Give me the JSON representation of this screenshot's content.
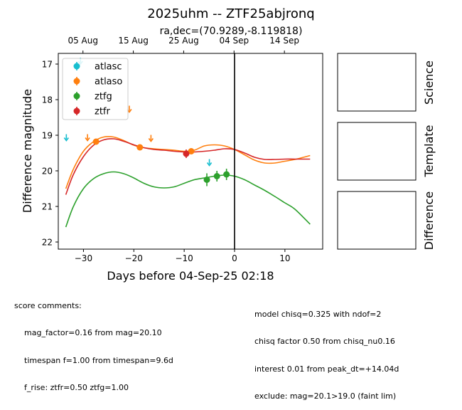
{
  "title": "2025uhm -- ZTF25abjronq",
  "subtitle": "ra,dec=(70.9289,-8.119818)",
  "colors": {
    "atlasc": "#17becf",
    "atlaso": "#ff7f0e",
    "ztfg": "#2ca02c",
    "ztfr": "#d62728"
  },
  "chart_data": {
    "type": "scatter",
    "xlabel": "Days before 04-Sep-25 02:18",
    "ylabel": "Difference magnitude",
    "xlim": [
      -35,
      17.5
    ],
    "ylim": [
      22.2,
      16.7
    ],
    "y_inverted": true,
    "x_ticks": [
      -30,
      -20,
      -10,
      0,
      10
    ],
    "x_tick_labels": [
      "−30",
      "−20",
      "−10",
      "0",
      "10"
    ],
    "y_ticks": [
      17,
      18,
      19,
      20,
      21,
      22
    ],
    "top_axis_ticks": [
      {
        "x": -30.1,
        "label": "05 Aug"
      },
      {
        "x": -20.1,
        "label": "15 Aug"
      },
      {
        "x": -10.1,
        "label": "25 Aug"
      },
      {
        "x": -0.1,
        "label": "04 Sep"
      },
      {
        "x": 9.9,
        "label": "14 Sep"
      }
    ],
    "vline_x": 0,
    "legend_position": "top-left",
    "series": [
      {
        "name": "atlasc",
        "color": "#17becf",
        "points": [],
        "upper_limits": [
          [
            -33.4,
            19.05
          ],
          [
            -30.6,
            16.9
          ],
          [
            -5.0,
            19.75
          ]
        ],
        "model": []
      },
      {
        "name": "atlaso",
        "color": "#ff7f0e",
        "points": [
          [
            -27.5,
            19.18,
            0.06
          ],
          [
            -18.8,
            19.34,
            0.06
          ],
          [
            -8.6,
            19.45,
            0.06
          ]
        ],
        "upper_limits": [
          [
            -29.2,
            19.05
          ],
          [
            -20.9,
            18.25
          ],
          [
            -16.6,
            19.07
          ]
        ],
        "model": [
          [
            -33.5,
            20.5
          ],
          [
            -32,
            19.95
          ],
          [
            -30,
            19.45
          ],
          [
            -28,
            19.18
          ],
          [
            -26,
            19.05
          ],
          [
            -24,
            19.05
          ],
          [
            -22,
            19.15
          ],
          [
            -20,
            19.28
          ],
          [
            -18,
            19.35
          ],
          [
            -16,
            19.38
          ],
          [
            -14,
            19.4
          ],
          [
            -12,
            19.42
          ],
          [
            -10,
            19.45
          ],
          [
            -8,
            19.42
          ],
          [
            -6,
            19.3
          ],
          [
            -4,
            19.27
          ],
          [
            -2,
            19.3
          ],
          [
            0,
            19.4
          ],
          [
            2,
            19.55
          ],
          [
            4,
            19.7
          ],
          [
            6,
            19.78
          ],
          [
            8,
            19.78
          ],
          [
            10,
            19.73
          ],
          [
            12,
            19.68
          ],
          [
            15,
            19.57
          ]
        ]
      },
      {
        "name": "ztfg",
        "color": "#2ca02c",
        "points": [
          [
            -5.5,
            20.25,
            0.18
          ],
          [
            -3.5,
            20.15,
            0.15
          ],
          [
            -1.6,
            20.1,
            0.16
          ]
        ],
        "upper_limits": [],
        "model": [
          [
            -33.5,
            21.58
          ],
          [
            -32,
            21.0
          ],
          [
            -30,
            20.5
          ],
          [
            -28,
            20.22
          ],
          [
            -26,
            20.08
          ],
          [
            -24,
            20.03
          ],
          [
            -22,
            20.08
          ],
          [
            -20,
            20.2
          ],
          [
            -18,
            20.35
          ],
          [
            -16,
            20.45
          ],
          [
            -14,
            20.48
          ],
          [
            -12,
            20.45
          ],
          [
            -10,
            20.35
          ],
          [
            -8,
            20.25
          ],
          [
            -6,
            20.2
          ],
          [
            -4,
            20.15
          ],
          [
            -2,
            20.12
          ],
          [
            0,
            20.15
          ],
          [
            2,
            20.25
          ],
          [
            4,
            20.4
          ],
          [
            6,
            20.55
          ],
          [
            8,
            20.72
          ],
          [
            10,
            20.9
          ],
          [
            12,
            21.08
          ],
          [
            15,
            21.5
          ]
        ]
      },
      {
        "name": "ztfr",
        "color": "#d62728",
        "points": [
          [
            -9.6,
            19.52,
            0.12
          ]
        ],
        "upper_limits": [],
        "model": [
          [
            -33.5,
            20.67
          ],
          [
            -32,
            20.1
          ],
          [
            -30,
            19.6
          ],
          [
            -28,
            19.28
          ],
          [
            -26,
            19.13
          ],
          [
            -24,
            19.1
          ],
          [
            -22,
            19.17
          ],
          [
            -20,
            19.27
          ],
          [
            -18,
            19.35
          ],
          [
            -16,
            19.4
          ],
          [
            -14,
            19.42
          ],
          [
            -12,
            19.45
          ],
          [
            -10,
            19.47
          ],
          [
            -8,
            19.47
          ],
          [
            -6,
            19.45
          ],
          [
            -4,
            19.42
          ],
          [
            -2,
            19.38
          ],
          [
            0,
            19.4
          ],
          [
            2,
            19.5
          ],
          [
            4,
            19.62
          ],
          [
            6,
            19.68
          ],
          [
            8,
            19.68
          ],
          [
            10,
            19.67
          ],
          [
            12,
            19.67
          ],
          [
            15,
            19.67
          ]
        ]
      }
    ]
  },
  "panels": {
    "science": "Science",
    "template": "Template",
    "difference": "Difference"
  },
  "comments": {
    "header": "score comments:",
    "left": [
      "mag_factor=0.16 from mag=20.10",
      "timespan f=1.00 from timespan=9.6d",
      "f_rise: ztfr=0.50 ztfg=1.00"
    ],
    "right": [
      "model chisq=0.325 with ndof=2",
      "chisq factor 0.50 from chisq_nu0.16",
      "interest 0.01 from peak_dt=+14.04d",
      "exclude: mag=20.1>19.0 (faint lim)"
    ]
  }
}
